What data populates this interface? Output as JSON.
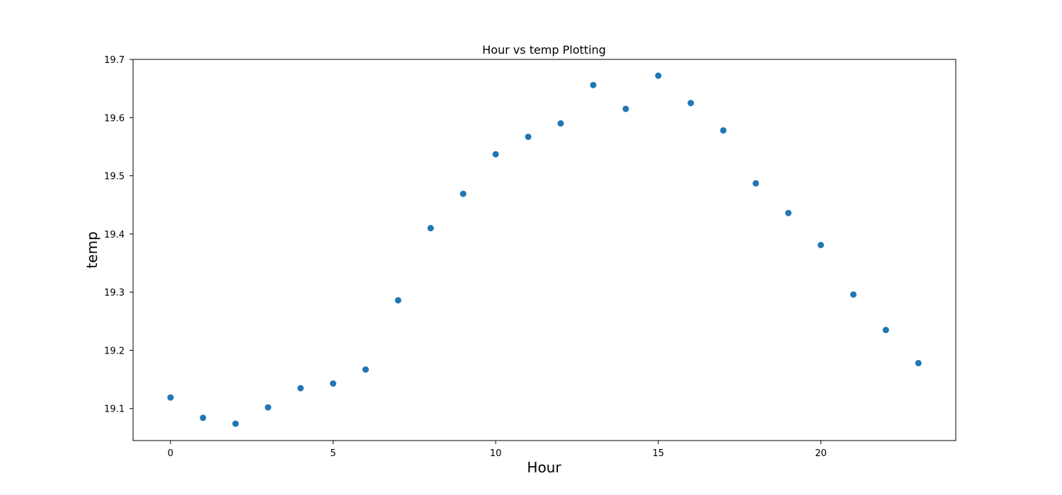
{
  "chart_data": {
    "type": "scatter",
    "title": "Hour vs temp Plotting",
    "xlabel": "Hour",
    "ylabel": "temp",
    "xlim": [
      -1.15,
      24.15
    ],
    "ylim": [
      19.045,
      19.7
    ],
    "xticks": [
      0,
      5,
      10,
      15,
      20
    ],
    "yticks": [
      19.1,
      19.2,
      19.3,
      19.4,
      19.5,
      19.6,
      19.7
    ],
    "grid": false,
    "legend": "none",
    "marker_color": "#1f77b4",
    "series": [
      {
        "x": [
          0,
          1,
          2,
          3,
          4,
          5,
          6,
          7,
          8,
          9,
          10,
          11,
          12,
          13,
          14,
          15,
          16,
          17,
          18,
          19,
          20,
          21,
          22,
          23
        ],
        "y": [
          19.119,
          19.084,
          19.074,
          19.102,
          19.135,
          19.143,
          19.167,
          19.286,
          19.41,
          19.469,
          19.537,
          19.567,
          19.59,
          19.656,
          19.615,
          19.672,
          19.625,
          19.578,
          19.487,
          19.436,
          19.381,
          19.296,
          19.235,
          19.178
        ]
      }
    ]
  }
}
